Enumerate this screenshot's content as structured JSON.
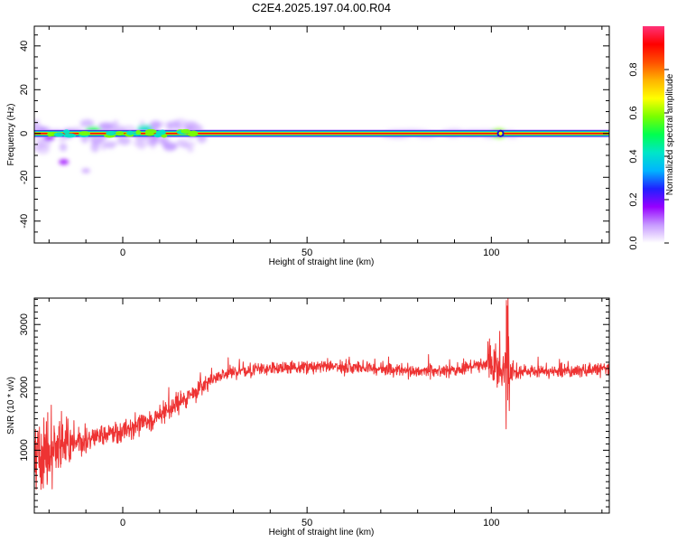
{
  "title": "C2E4.2025.197.04.00.R04",
  "colors": {
    "trace": "#ee3333",
    "colormap": [
      "#ffffff",
      "#c79bff",
      "#9600ff",
      "#2020ff",
      "#00b4ff",
      "#00e6c8",
      "#00ff50",
      "#78ff00",
      "#ffff00",
      "#ffb400",
      "#ff5000",
      "#ff0000",
      "#ff3278"
    ]
  },
  "chart_data": [
    {
      "type": "heatmap",
      "name": "spectrogram",
      "xlabel": "Height of straight line (km)",
      "ylabel": "Frequency (Hz)",
      "xlim": [
        -24,
        132
      ],
      "ylim": [
        -50,
        49
      ],
      "xticks": [
        0,
        50,
        100
      ],
      "yticks": [
        -40,
        -20,
        0,
        20,
        40
      ],
      "colorbar": {
        "label": "Normalized spectral amplitude",
        "range": [
          0,
          1
        ],
        "ticks": [
          "0.0",
          "0.2",
          "0.4",
          "0.6",
          "0.8"
        ]
      },
      "main_band": {
        "frequency": 0,
        "x_range": [
          -24,
          132
        ]
      },
      "features": [
        {
          "x": -20,
          "f": -2,
          "amplitude": 0.2
        },
        {
          "x": -16,
          "f": -13,
          "amplitude": 0.15
        },
        {
          "x": -10,
          "f": -17,
          "amplitude": 0.08
        },
        {
          "x": -8,
          "f": 1,
          "amplitude": 0.5
        },
        {
          "x": 6,
          "f": 2,
          "amplitude": 0.45
        },
        {
          "x": 102,
          "f": 0,
          "amplitude": 0.55
        }
      ]
    },
    {
      "type": "line",
      "name": "snr",
      "xlabel": "Height of straight line (km)",
      "ylabel": "SNR (10 * v/v)",
      "xlim": [
        -24,
        132
      ],
      "ylim": [
        0,
        3420
      ],
      "xticks": [
        0,
        50,
        100
      ],
      "yticks": [
        1000,
        2000,
        3000
      ],
      "envelope": {
        "x": [
          -24,
          -20,
          -16,
          -10,
          -5,
          0,
          5,
          10,
          15,
          20,
          25,
          30,
          40,
          50,
          60,
          70,
          80,
          90,
          95,
          100,
          102,
          104,
          106,
          110,
          120,
          132
        ],
        "y": [
          900,
          1000,
          1050,
          1150,
          1250,
          1300,
          1400,
          1550,
          1750,
          1950,
          2150,
          2250,
          2300,
          2330,
          2330,
          2300,
          2260,
          2270,
          2330,
          2400,
          2350,
          2300,
          2250,
          2250,
          2250,
          2300
        ]
      }
    }
  ]
}
